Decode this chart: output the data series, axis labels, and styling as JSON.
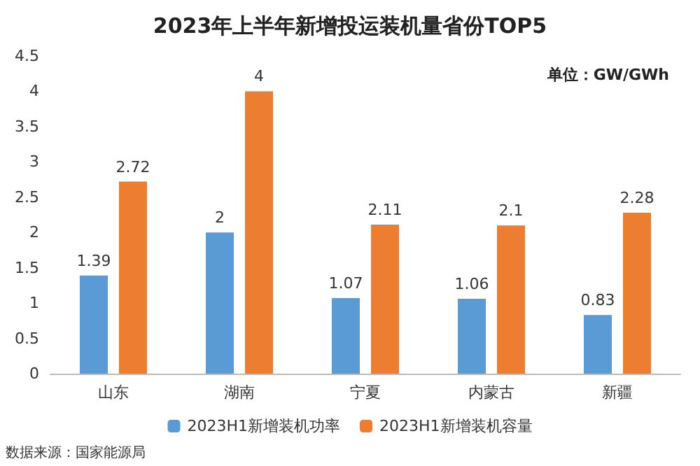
{
  "chart_data": {
    "type": "bar",
    "title": "2023年上半年新增投运装机量省份TOP5",
    "categories": [
      "山东",
      "湖南",
      "宁夏",
      "内蒙古",
      "新疆"
    ],
    "series": [
      {
        "name": "2023H1新增装机功率",
        "color": "#5b9bd5",
        "values": [
          1.39,
          2,
          1.07,
          1.06,
          0.83
        ]
      },
      {
        "name": "2023H1新增装机容量",
        "color": "#ed7d31",
        "values": [
          2.72,
          4,
          2.11,
          2.1,
          2.28
        ]
      }
    ],
    "ylim": [
      0,
      4.5
    ],
    "yticks": [
      0,
      0.5,
      1,
      1.5,
      2,
      2.5,
      3,
      3.5,
      4,
      4.5
    ],
    "annotations": [
      "单位：GW/GWh",
      "数据来源：国家能源局"
    ],
    "data_labels": true,
    "legend": "bottom",
    "grid": false
  }
}
